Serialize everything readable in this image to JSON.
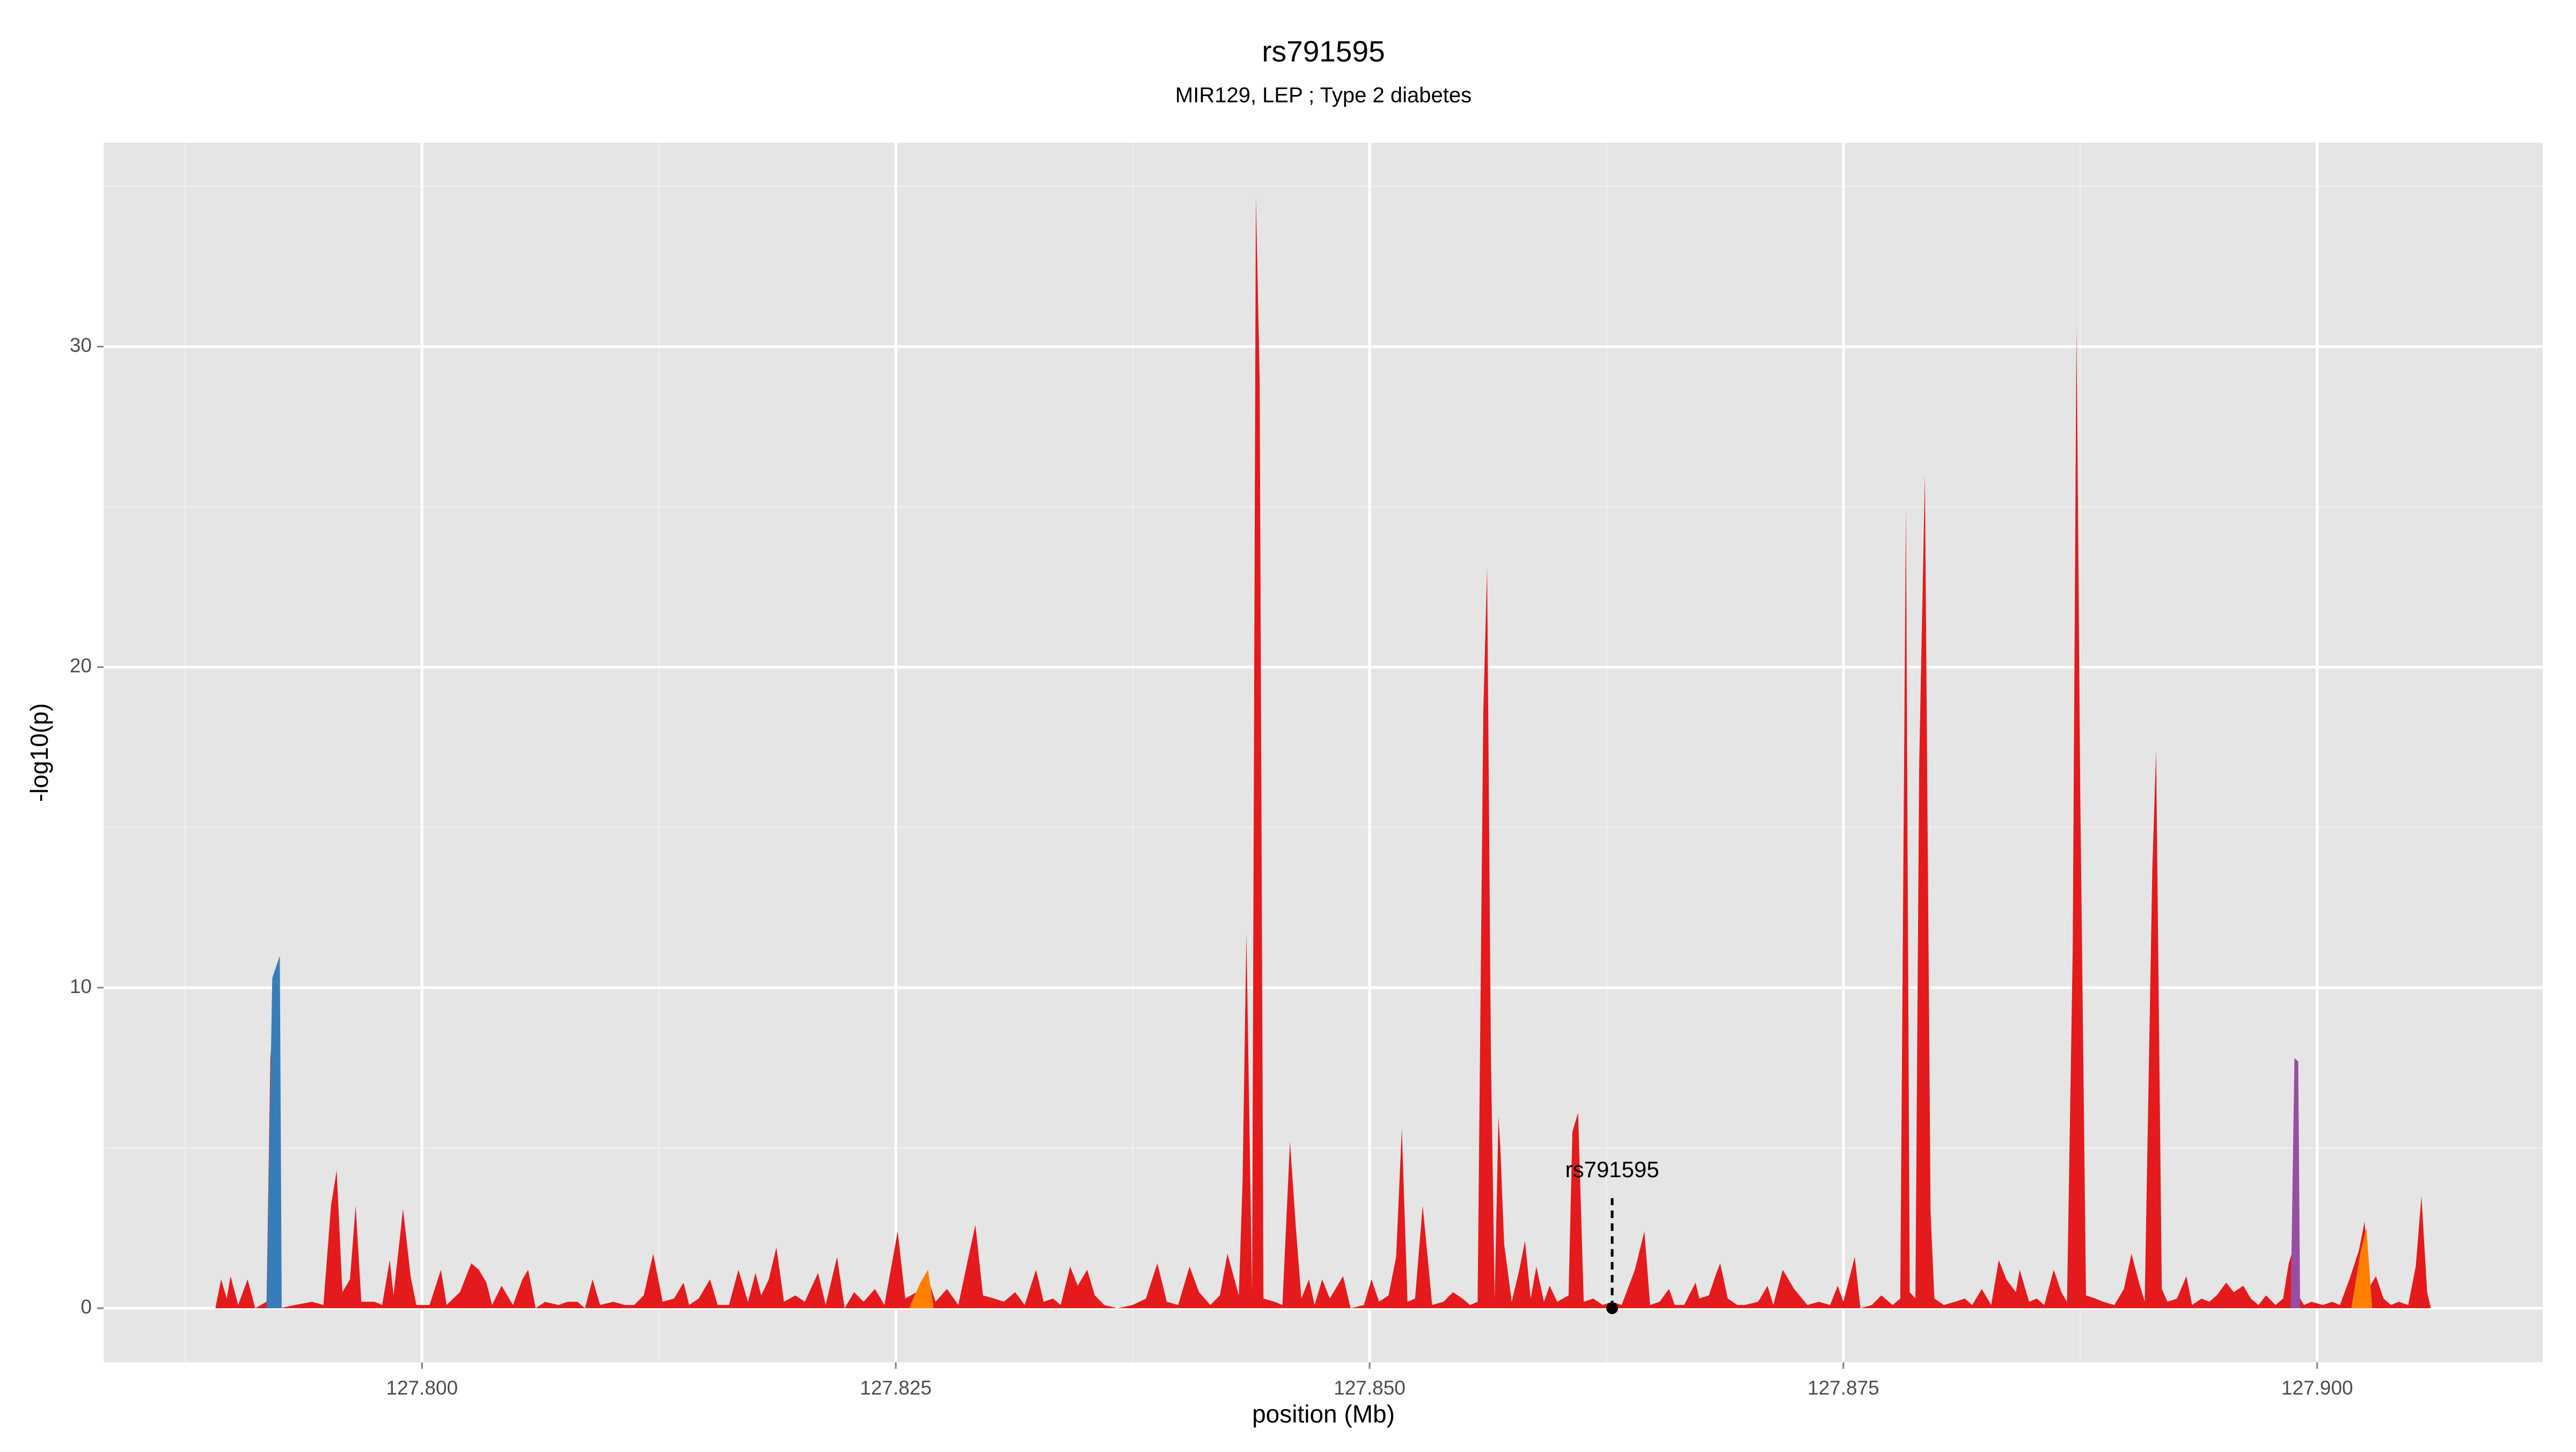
{
  "chart_data": {
    "type": "area",
    "title": "rs791595",
    "subtitle": "MIR129, LEP ; Type 2 diabetes",
    "xlabel": "position (Mb)",
    "ylabel": "-log10(p)",
    "xlim": [
      127.7832,
      127.9119
    ],
    "ylim": [
      -1.69,
      36.36
    ],
    "xticks": [
      {
        "value": 127.8,
        "label": "127.800"
      },
      {
        "value": 127.825,
        "label": "127.825"
      },
      {
        "value": 127.85,
        "label": "127.850"
      },
      {
        "value": 127.875,
        "label": "127.875"
      },
      {
        "value": 127.9,
        "label": "127.900"
      }
    ],
    "xminorticks": [
      127.7875,
      127.8125,
      127.8375,
      127.8625,
      127.8875
    ],
    "yticks": [
      0,
      10,
      20,
      30
    ],
    "yminorticks": [
      5,
      15,
      25,
      35
    ],
    "grid": true,
    "background": "#e5e5e5",
    "annotation": {
      "text": "rs791595",
      "x": 127.8628,
      "y": 0
    },
    "series": [
      {
        "color": "#e41a1c",
        "x": [
          127.7891,
          127.7894,
          127.7897,
          127.7899,
          127.7903,
          127.7908,
          127.7912,
          127.7918,
          127.792,
          127.7923,
          127.7925,
          127.7933,
          127.7942,
          127.7948,
          127.7952,
          127.7955,
          127.7958,
          127.7962,
          127.7965,
          127.7968,
          127.7975,
          127.7979,
          127.7983,
          127.7985,
          127.799,
          127.7994,
          127.7997,
          127.8004,
          127.801,
          127.8013,
          127.802,
          127.8026,
          127.803,
          127.8034,
          127.8037,
          127.8042,
          127.8048,
          127.8053,
          127.8056,
          127.806,
          127.8065,
          127.8072,
          127.8077,
          127.8082,
          127.8086,
          127.809,
          127.8094,
          127.8101,
          127.8107,
          127.8112,
          127.8117,
          127.8122,
          127.8127,
          127.8133,
          127.8138,
          127.8141,
          127.8146,
          127.8152,
          127.8156,
          127.8162,
          127.8167,
          127.8172,
          127.8176,
          127.8179,
          127.8183,
          127.8187,
          127.8191,
          127.8197,
          127.8202,
          127.8209,
          127.8213,
          127.8219,
          127.8223,
          127.8228,
          127.8233,
          127.8239,
          127.8244,
          127.8251,
          127.8255,
          127.8261,
          127.8266,
          127.8271,
          127.8277,
          127.8283,
          127.8288,
          127.8292,
          127.8296,
          127.8302,
          127.8307,
          127.8313,
          127.8318,
          127.8324,
          127.8328,
          127.8333,
          127.8337,
          127.8342,
          127.8346,
          127.8351,
          127.8355,
          127.836,
          127.8367,
          127.8375,
          127.8382,
          127.8388,
          127.8393,
          127.8399,
          127.8405,
          127.841,
          127.8416,
          127.8421,
          127.8425,
          127.8431,
          127.8433,
          127.8435,
          127.8438,
          127.844,
          127.8442,
          127.8444,
          127.845,
          127.8454,
          127.8458,
          127.8461,
          127.8464,
          127.8468,
          127.8471,
          127.8475,
          127.8479,
          127.8483,
          127.8486,
          127.849,
          127.8497,
          127.8501,
          127.8505,
          127.851,
          127.8514,
          127.8517,
          127.852,
          127.8524,
          127.8528,
          127.8529,
          127.8533,
          127.8539,
          127.8544,
          127.8549,
          127.8553,
          127.8557,
          127.856,
          127.8562,
          127.8564,
          127.8566,
          127.8568,
          127.8569,
          127.8571,
          127.8575,
          127.8579,
          127.8582,
          127.8585,
          127.8588,
          127.8592,
          127.8595,
          127.8599,
          127.8605,
          127.8607,
          127.861,
          127.8613,
          127.8618,
          127.8623,
          127.8628,
          127.8633,
          127.864,
          127.8645,
          127.8648,
          127.8653,
          127.8658,
          127.8661,
          127.8666,
          127.8672,
          127.8674,
          127.8679,
          127.8683,
          127.8685,
          127.8689,
          127.8694,
          127.8698,
          127.8705,
          127.871,
          127.8713,
          127.8718,
          127.8724,
          127.8731,
          127.8737,
          127.8743,
          127.8747,
          127.875,
          127.8756,
          127.8759,
          127.8765,
          127.877,
          127.8776,
          127.878,
          127.8783,
          127.8785,
          127.8788,
          127.879,
          127.8793,
          127.8796,
          127.8798,
          127.8803,
          127.8809,
          127.8814,
          127.8818,
          127.8823,
          127.8828,
          127.8832,
          127.8836,
          127.8841,
          127.8843,
          127.8848,
          127.8852,
          127.8856,
          127.8861,
          127.8865,
          127.8868,
          127.8871,
          127.8873,
          127.8875,
          127.8878,
          127.8883,
          127.8887,
          127.8893,
          127.8898,
          127.8902,
          127.8906,
          127.8909,
          127.8913,
          127.8915,
          127.8918,
          127.8921,
          127.8926,
          127.8931,
          127.8934,
          127.8939,
          127.8943,
          127.8947,
          127.8952,
          127.8956,
          127.8961,
          127.8965,
          127.8969,
          127.8973,
          127.8978,
          127.8982,
          127.8985,
          127.8988,
          127.899,
          127.8993,
          127.8997,
          127.9003,
          127.9008,
          127.9012,
          127.9017,
          127.9022,
          127.9025,
          127.9028,
          127.9031,
          127.9035,
          127.9039,
          127.9043,
          127.9048,
          127.9052,
          127.9055,
          127.9058,
          127.906
        ],
        "values": [
          0,
          0.9,
          0.3,
          1.0,
          0.1,
          0.9,
          0,
          0.2,
          7.8,
          10.2,
          0,
          0.1,
          0.2,
          0.1,
          3.2,
          4.3,
          0.5,
          0.9,
          3.2,
          0.2,
          0.2,
          0.1,
          1.5,
          0.4,
          3.1,
          1.0,
          0.1,
          0.1,
          1.2,
          0.1,
          0.5,
          1.4,
          1.2,
          0.8,
          0.1,
          0.7,
          0.1,
          0.9,
          1.2,
          0,
          0.2,
          0.1,
          0.2,
          0.2,
          0,
          0.9,
          0.1,
          0.2,
          0.1,
          0.1,
          0.4,
          1.7,
          0.2,
          0.3,
          0.8,
          0.1,
          0.3,
          0.9,
          0.1,
          0.1,
          1.2,
          0.2,
          1.1,
          0.4,
          0.9,
          1.9,
          0.2,
          0.4,
          0.2,
          1.1,
          0.1,
          1.6,
          0,
          0.5,
          0.2,
          0.6,
          0.1,
          2.4,
          0.3,
          0.5,
          1.1,
          0.2,
          0.6,
          0.1,
          1.5,
          2.6,
          0.4,
          0.3,
          0.2,
          0.5,
          0.1,
          1.2,
          0.2,
          0.3,
          0.1,
          1.3,
          0.7,
          1.2,
          0.4,
          0.1,
          0,
          0.1,
          0.3,
          1.4,
          0.2,
          0.1,
          1.3,
          0.5,
          0.1,
          0.4,
          1.7,
          0.4,
          4,
          11.7,
          0.5,
          34.7,
          29,
          0.3,
          0.2,
          0.1,
          5.2,
          2.6,
          0.3,
          0.9,
          0.1,
          0.9,
          0.3,
          0.7,
          1.0,
          0,
          0.1,
          0.9,
          0.2,
          0.4,
          1.6,
          5.6,
          0.2,
          0.3,
          3.2,
          2.6,
          0.1,
          0.2,
          0.5,
          0.3,
          0.1,
          0.2,
          18.6,
          23.1,
          8,
          0.3,
          6,
          5,
          2,
          0.2,
          1.2,
          2.1,
          0.3,
          1.3,
          0.2,
          0.7,
          0.2,
          0.4,
          5.5,
          6.1,
          0.2,
          0.3,
          0.1,
          0.2,
          0.1,
          1.2,
          2.4,
          0.1,
          0.2,
          0.6,
          0.1,
          0.1,
          0.8,
          0.3,
          0.4,
          1.1,
          1.4,
          0.3,
          0.1,
          0.1,
          0.2,
          0.7,
          0.1,
          1.2,
          0.6,
          0.1,
          0.2,
          0.1,
          0.7,
          0.2,
          1.6,
          0,
          0.1,
          0.4,
          0.1,
          0.3,
          25,
          0.5,
          0.3,
          17,
          26,
          3,
          0.3,
          0.1,
          0.2,
          0.3,
          0.1,
          0.6,
          0.1,
          1.5,
          0.9,
          0.5,
          1.2,
          0.2,
          0.3,
          0.1,
          1.2,
          0.5,
          0.2,
          11.2,
          30.6,
          16,
          0.4,
          0.3,
          0.2,
          0.1,
          0.6,
          1.7,
          0.8,
          0.2,
          13.7,
          17.4,
          0.6,
          0.2,
          0.3,
          1.0,
          0.1,
          0.3,
          0.2,
          0.4,
          0.8,
          0.5,
          0.7,
          0.3,
          0.1,
          0.4,
          0.1,
          0.3,
          1.4,
          2,
          0.4,
          0.1,
          0.2,
          0.1,
          0.2,
          0.1,
          0.9,
          1.8,
          2.7,
          0.7,
          1.0,
          0.3,
          0.1,
          0.2,
          0.1,
          1.3,
          3.5,
          0.5,
          0
        ]
      },
      {
        "color": "#ff7f00",
        "x": [
          127.8257,
          127.8263,
          127.8267,
          127.827
        ],
        "values": [
          0,
          0.8,
          1.2,
          0
        ]
      },
      {
        "color": "#ff7f00",
        "x": [
          127.9018,
          127.9023,
          127.9026,
          127.9029
        ],
        "values": [
          0,
          1.8,
          2.5,
          0
        ]
      },
      {
        "color": "#377eb8",
        "x": [
          127.7918,
          127.7921,
          127.7925,
          127.7926
        ],
        "values": [
          0,
          10.3,
          11,
          0
        ]
      },
      {
        "color": "#984ea3",
        "x": [
          127.8986,
          127.8988,
          127.899,
          127.8991
        ],
        "values": [
          0,
          7.8,
          7.7,
          0
        ]
      }
    ]
  }
}
